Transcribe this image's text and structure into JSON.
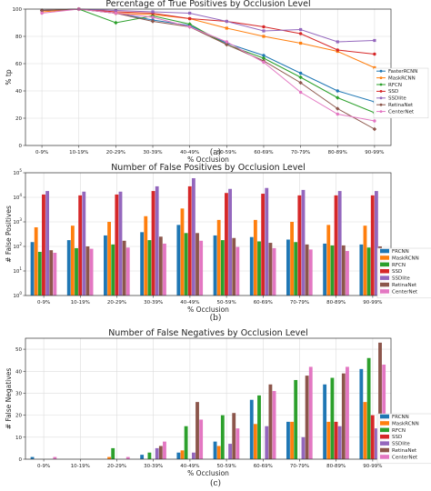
{
  "chart_data": [
    {
      "type": "line",
      "title": "Percentage of True Positives by Occlusion Level",
      "xlabel": "% Occlusion",
      "ylabel": "% tp",
      "caption": "(a)",
      "categories": [
        "0-9%",
        "10-19%",
        "20-29%",
        "30-39%",
        "40-49%",
        "50-59%",
        "60-69%",
        "70-79%",
        "80-89%",
        "90-99%"
      ],
      "ylim": [
        0,
        100
      ],
      "yticks": [
        "0",
        "20",
        "40",
        "60",
        "80",
        "100"
      ],
      "grid": true,
      "legend_position": "right",
      "series": [
        {
          "name": "FasterRCNN",
          "color": "#1f77b4",
          "values": [
            99,
            100,
            97,
            92,
            88,
            75,
            66,
            53,
            40,
            32
          ]
        },
        {
          "name": "MaskRCNN",
          "color": "#ff7f0e",
          "values": [
            98,
            100,
            97,
            96,
            93,
            86,
            80,
            75,
            69,
            57
          ]
        },
        {
          "name": "RFCN",
          "color": "#2ca02c",
          "values": [
            99,
            100,
            90,
            95,
            89,
            74,
            64,
            50,
            35,
            24
          ]
        },
        {
          "name": "SSD",
          "color": "#d62728",
          "values": [
            99,
            100,
            98,
            97,
            93,
            91,
            87,
            82,
            70,
            67
          ]
        },
        {
          "name": "SSDlite",
          "color": "#9467bd",
          "values": [
            99,
            100,
            99,
            98,
            97,
            91,
            84,
            85,
            76,
            77
          ]
        },
        {
          "name": "RetinaNet",
          "color": "#8c564b",
          "values": [
            99,
            100,
            97,
            91,
            87,
            74,
            62,
            46,
            27,
            12
          ]
        },
        {
          "name": "CenterNet",
          "color": "#e377c2",
          "values": [
            97,
            100,
            97,
            94,
            87,
            76,
            61,
            39,
            23,
            18
          ]
        }
      ]
    },
    {
      "type": "bar",
      "title": "Number of False Positives by Occlusion Level",
      "xlabel": "% Occlusion",
      "ylabel": "# False Positives",
      "caption": "(b)",
      "yscale": "log",
      "categories": [
        "0-9%",
        "10-19%",
        "20-29%",
        "30-39%",
        "40-49%",
        "50-59%",
        "60-69%",
        "70-79%",
        "80-89%",
        "90-99%"
      ],
      "ylim": [
        1,
        100000
      ],
      "yticks": [
        "10^0",
        "10^1",
        "10^2",
        "10^3",
        "10^4",
        "10^5"
      ],
      "grid": true,
      "legend_position": "right",
      "series": [
        {
          "name": "FRCNN",
          "color": "#1f77b4",
          "values": [
            150,
            180,
            280,
            380,
            750,
            280,
            240,
            190,
            130,
            120
          ]
        },
        {
          "name": "MaskRCNN",
          "color": "#ff7f0e",
          "values": [
            600,
            700,
            1000,
            1700,
            3500,
            1200,
            1200,
            1000,
            750,
            700
          ]
        },
        {
          "name": "RFCN",
          "color": "#2ca02c",
          "values": [
            60,
            85,
            120,
            180,
            350,
            180,
            160,
            150,
            110,
            90
          ]
        },
        {
          "name": "SSD",
          "color": "#d62728",
          "values": [
            13000,
            12000,
            13000,
            18000,
            28000,
            15000,
            14000,
            12000,
            12000,
            12000
          ]
        },
        {
          "name": "SSDlite",
          "color": "#9467bd",
          "values": [
            18000,
            17000,
            17000,
            28000,
            60000,
            22000,
            24000,
            20000,
            18000,
            18000
          ]
        },
        {
          "name": "RetinaNet",
          "color": "#8c564b",
          "values": [
            70,
            100,
            170,
            250,
            350,
            220,
            140,
            120,
            110,
            100
          ]
        },
        {
          "name": "CenterNet",
          "color": "#e377c2",
          "values": [
            55,
            80,
            90,
            130,
            170,
            95,
            85,
            75,
            65,
            55
          ]
        }
      ]
    },
    {
      "type": "bar",
      "title": "Number of False Negatives by Occlusion Level",
      "xlabel": "% Occlusion",
      "ylabel": "# False Negatives",
      "caption": "(c)",
      "categories": [
        "0-9%",
        "10-19%",
        "20-29%",
        "30-39%",
        "40-49%",
        "50-59%",
        "60-69%",
        "70-79%",
        "80-89%",
        "90-99%"
      ],
      "ylim": [
        0,
        55
      ],
      "yticks": [
        "0",
        "10",
        "20",
        "30",
        "40",
        "50"
      ],
      "grid": true,
      "legend_position": "right",
      "series": [
        {
          "name": "FRCNN",
          "color": "#1f77b4",
          "values": [
            1,
            0,
            0,
            2,
            3,
            8,
            27,
            17,
            34,
            41
          ]
        },
        {
          "name": "MaskRCNN",
          "color": "#ff7f0e",
          "values": [
            0,
            0,
            1,
            0,
            4,
            6,
            16,
            17,
            17,
            26
          ]
        },
        {
          "name": "RFCN",
          "color": "#2ca02c",
          "values": [
            0,
            0,
            5,
            3,
            15,
            20,
            29,
            36,
            37,
            46
          ]
        },
        {
          "name": "SSD",
          "color": "#d62728",
          "values": [
            0,
            0,
            0,
            0,
            0,
            0,
            0,
            0,
            17,
            20
          ]
        },
        {
          "name": "SSDlite",
          "color": "#9467bd",
          "values": [
            0,
            0,
            0,
            5,
            3,
            7,
            15,
            10,
            15,
            14
          ]
        },
        {
          "name": "RetinaNet",
          "color": "#8c564b",
          "values": [
            0,
            0,
            0,
            6,
            26,
            21,
            34,
            38,
            39,
            53
          ]
        },
        {
          "name": "CenterNet",
          "color": "#e377c2",
          "values": [
            1,
            0,
            1,
            8,
            18,
            14,
            31,
            42,
            42,
            43
          ]
        }
      ]
    }
  ]
}
